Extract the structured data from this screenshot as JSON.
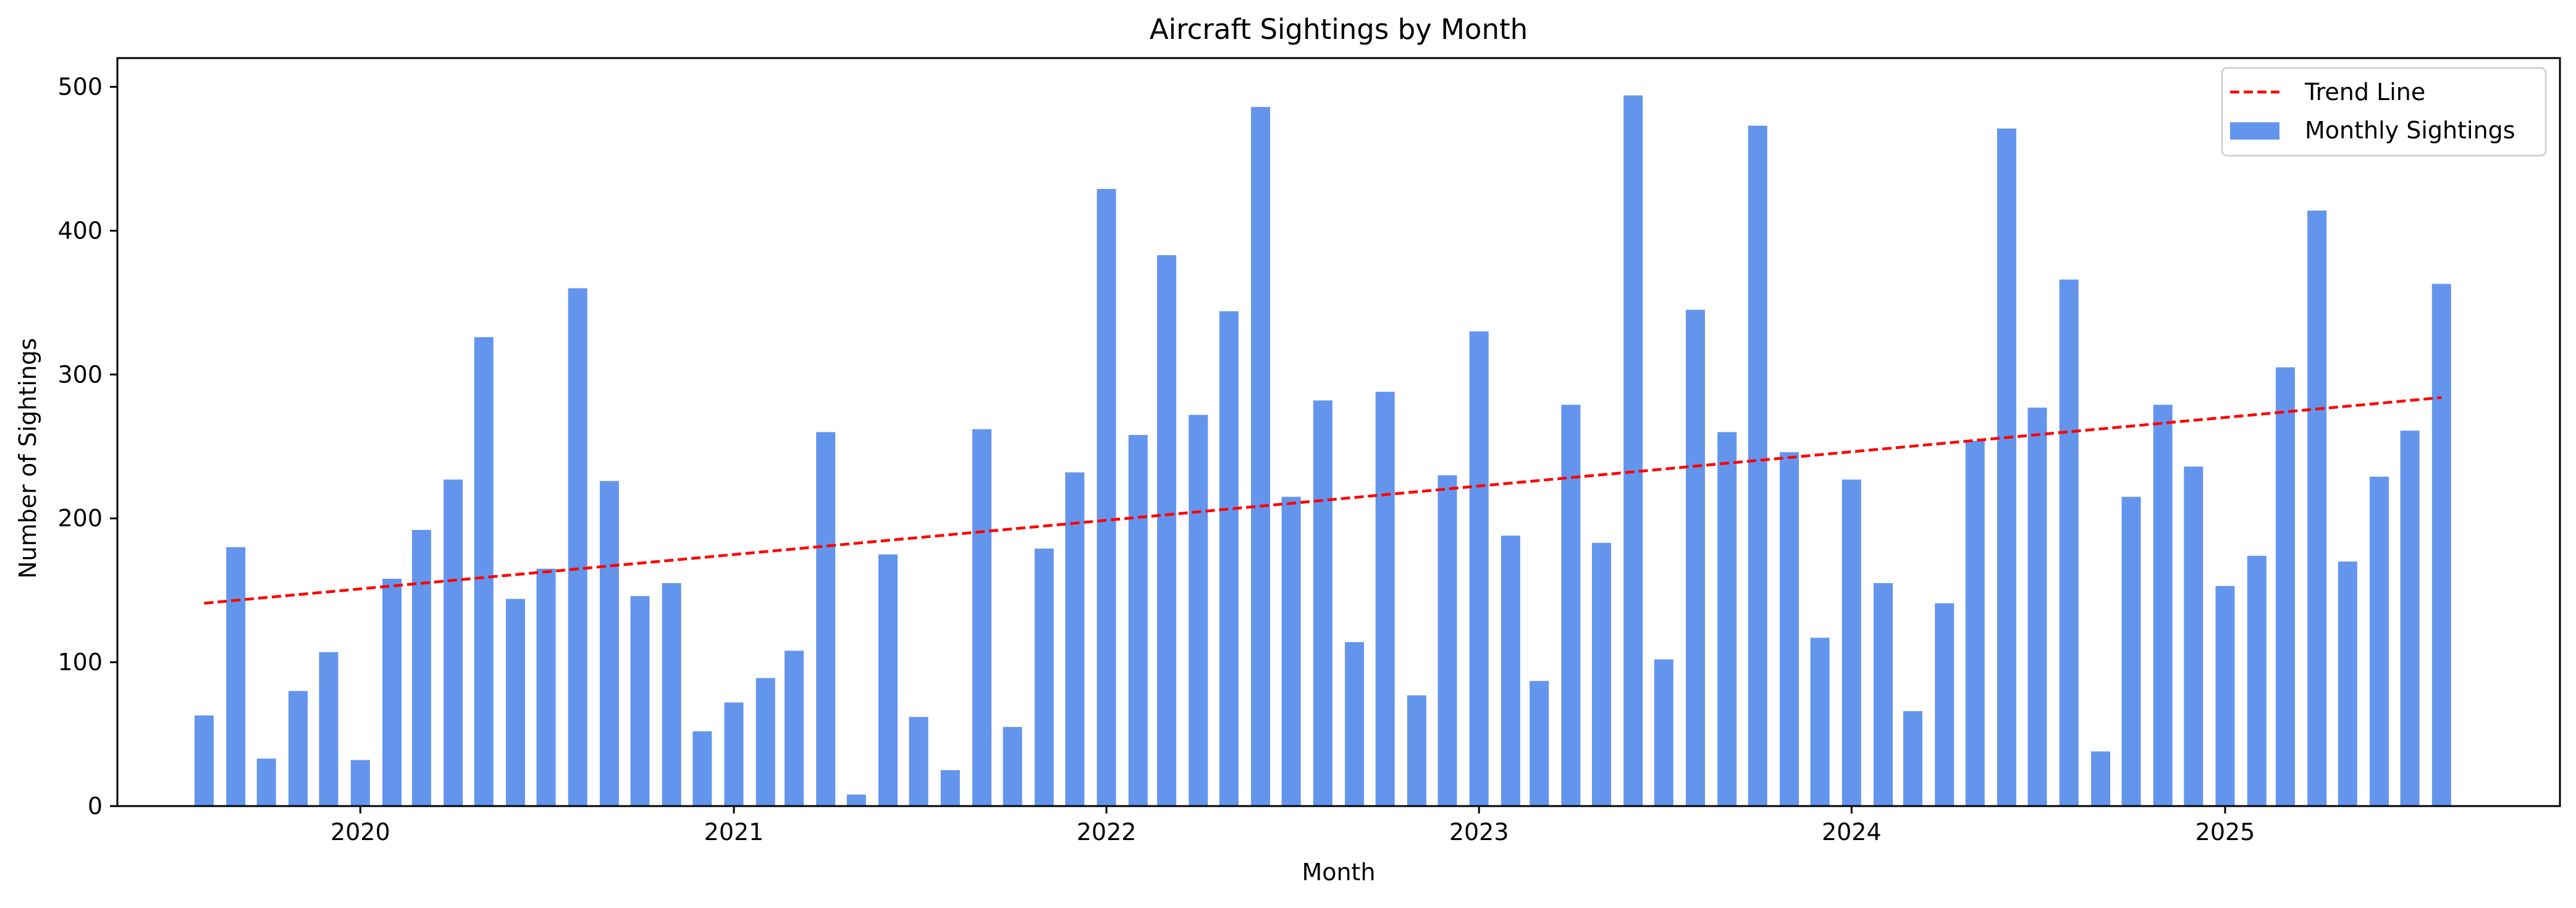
{
  "chart_data": {
    "type": "bar",
    "title": "Aircraft Sightings by Month",
    "xlabel": "Month",
    "ylabel": "Number of Sightings",
    "xlim": [
      "2019-05-08",
      "2025-11-25"
    ],
    "ylim": [
      0,
      520
    ],
    "x_ticks": [
      {
        "date": "2020-01-01",
        "label": "2020"
      },
      {
        "date": "2021-01-01",
        "label": "2021"
      },
      {
        "date": "2022-01-01",
        "label": "2022"
      },
      {
        "date": "2023-01-01",
        "label": "2023"
      },
      {
        "date": "2024-01-01",
        "label": "2024"
      },
      {
        "date": "2025-01-01",
        "label": "2025"
      }
    ],
    "y_ticks": [
      0,
      100,
      200,
      300,
      400,
      500
    ],
    "grid": false,
    "legend_position": "top-right",
    "series": [
      {
        "name": "Monthly Sightings",
        "type": "bar",
        "color": "#6495ed",
        "x": [
          "2019-08",
          "2019-09",
          "2019-10",
          "2019-11",
          "2019-12",
          "2020-01",
          "2020-02",
          "2020-03",
          "2020-04",
          "2020-05",
          "2020-06",
          "2020-07",
          "2020-08",
          "2020-09",
          "2020-10",
          "2020-11",
          "2020-12",
          "2021-01",
          "2021-02",
          "2021-03",
          "2021-04",
          "2021-05",
          "2021-06",
          "2021-07",
          "2021-08",
          "2021-09",
          "2021-10",
          "2021-11",
          "2021-12",
          "2022-01",
          "2022-02",
          "2022-03",
          "2022-04",
          "2022-05",
          "2022-06",
          "2022-07",
          "2022-08",
          "2022-09",
          "2022-10",
          "2022-11",
          "2022-12",
          "2023-01",
          "2023-02",
          "2023-03",
          "2023-04",
          "2023-05",
          "2023-06",
          "2023-07",
          "2023-08",
          "2023-09",
          "2023-10",
          "2023-11",
          "2023-12",
          "2024-01",
          "2024-02",
          "2024-03",
          "2024-04",
          "2024-05",
          "2024-06",
          "2024-07",
          "2024-08",
          "2024-09",
          "2024-10",
          "2024-11",
          "2024-12",
          "2025-01",
          "2025-02",
          "2025-03",
          "2025-04",
          "2025-05",
          "2025-06",
          "2025-07",
          "2025-08"
        ],
        "values": [
          63,
          180,
          33,
          80,
          107,
          32,
          158,
          192,
          227,
          326,
          144,
          165,
          360,
          226,
          146,
          155,
          52,
          72,
          89,
          108,
          260,
          8,
          175,
          62,
          25,
          262,
          55,
          179,
          232,
          429,
          258,
          383,
          272,
          344,
          486,
          215,
          282,
          114,
          288,
          77,
          230,
          330,
          188,
          87,
          279,
          183,
          494,
          102,
          345,
          260,
          473,
          246,
          117,
          227,
          155,
          66,
          141,
          254,
          471,
          277,
          366,
          38,
          215,
          279,
          236,
          153,
          174,
          305,
          414,
          170,
          229,
          261,
          363
        ]
      },
      {
        "name": "Trend Line",
        "type": "line",
        "style": "dashed",
        "color": "#ff0000",
        "x": [
          "2019-08-01",
          "2025-08-01"
        ],
        "values": [
          141,
          284
        ]
      }
    ]
  }
}
